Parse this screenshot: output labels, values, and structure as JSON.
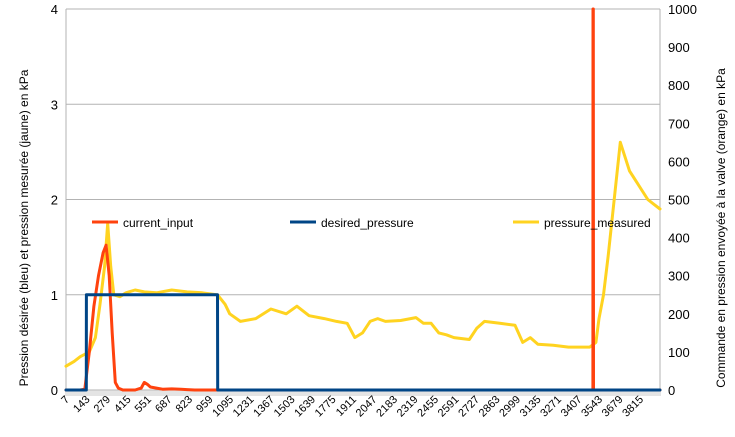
{
  "chart_data": {
    "type": "line",
    "title": "",
    "ylabel_left": "Pression désirée (bleu) et pression mesurée (jaune) en kPa",
    "ylabel_right": "Commande en pression envoyée à la valve (orange) en kPa",
    "xlabel": "",
    "x_range": [
      7,
      3900
    ],
    "y_left": {
      "min": 0,
      "max": 4,
      "ticks": [
        "0",
        "1",
        "2",
        "3",
        "4"
      ]
    },
    "y_right": {
      "min": 0,
      "max": 1000,
      "ticks": [
        "0",
        "100",
        "200",
        "300",
        "400",
        "500",
        "600",
        "700",
        "800",
        "900",
        "1000"
      ]
    },
    "x_tick_labels": [
      "7",
      "143",
      "279",
      "415",
      "551",
      "687",
      "823",
      "959",
      "1095",
      "1231",
      "1367",
      "1503",
      "1639",
      "1775",
      "1911",
      "2047",
      "2183",
      "2319",
      "2455",
      "2591",
      "2727",
      "2863",
      "2999",
      "3135",
      "3271",
      "3407",
      "3543",
      "3679",
      "3815"
    ],
    "grid": "horizontal",
    "legend_position": "middle",
    "series": [
      {
        "name": "current_input",
        "color": "#ff420e",
        "axis": "right",
        "x": [
          7,
          100,
          130,
          160,
          190,
          220,
          250,
          270,
          290,
          310,
          330,
          350,
          380,
          420,
          460,
          500,
          520,
          540,
          560,
          600,
          640,
          700,
          760,
          800,
          850,
          900,
          1000,
          1500,
          2000,
          2500,
          3000,
          3400,
          3460,
          3461,
          3463,
          3464,
          3600,
          3900
        ],
        "y": [
          0,
          0,
          2,
          100,
          220,
          300,
          360,
          380,
          300,
          150,
          20,
          5,
          0,
          0,
          0,
          5,
          20,
          15,
          8,
          5,
          2,
          3,
          2,
          1,
          0,
          0,
          0,
          0,
          0,
          0,
          0,
          0,
          0,
          1000,
          1000,
          0,
          0,
          0
        ]
      },
      {
        "name": "desired_pressure",
        "color": "#004586",
        "axis": "left",
        "x": [
          7,
          140,
          141,
          1000,
          1001,
          3900
        ],
        "y": [
          0,
          0,
          1,
          1,
          0,
          0
        ]
      },
      {
        "name": "pressure_measured",
        "color": "#ffd320",
        "axis": "left",
        "x": [
          7,
          60,
          100,
          160,
          200,
          230,
          260,
          280,
          300,
          320,
          360,
          400,
          460,
          520,
          600,
          700,
          800,
          900,
          1000,
          1050,
          1080,
          1150,
          1250,
          1350,
          1450,
          1520,
          1600,
          1700,
          1780,
          1850,
          1900,
          1950,
          2000,
          2050,
          2100,
          2200,
          2300,
          2350,
          2400,
          2450,
          2500,
          2550,
          2650,
          2700,
          2750,
          2850,
          2950,
          3000,
          3050,
          3100,
          3200,
          3300,
          3380,
          3440,
          3480,
          3500,
          3530,
          3560,
          3600,
          3640,
          3670,
          3700,
          3740,
          3780,
          3820,
          3860,
          3900
        ],
        "y": [
          0.25,
          0.3,
          0.35,
          0.4,
          0.55,
          0.9,
          1.3,
          1.75,
          1.3,
          1.0,
          0.98,
          1.02,
          1.05,
          1.03,
          1.02,
          1.05,
          1.03,
          1.02,
          1.0,
          0.9,
          0.8,
          0.72,
          0.75,
          0.85,
          0.8,
          0.88,
          0.78,
          0.75,
          0.72,
          0.7,
          0.55,
          0.6,
          0.72,
          0.75,
          0.72,
          0.73,
          0.76,
          0.7,
          0.7,
          0.6,
          0.58,
          0.55,
          0.53,
          0.65,
          0.72,
          0.7,
          0.68,
          0.5,
          0.55,
          0.48,
          0.47,
          0.45,
          0.45,
          0.45,
          0.5,
          0.75,
          1.0,
          1.4,
          2.0,
          2.6,
          2.45,
          2.3,
          2.2,
          2.1,
          2.0,
          1.95,
          1.9
        ]
      }
    ]
  }
}
